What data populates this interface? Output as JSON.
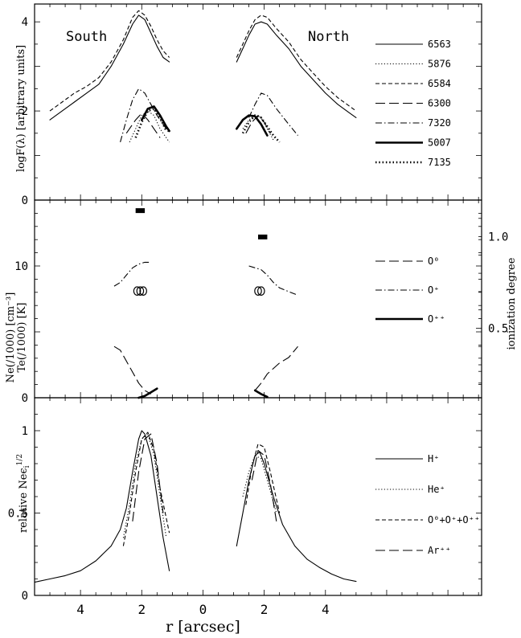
{
  "chart_data": [
    {
      "type": "line",
      "ylabel": "logF(λ) [arbitrary units]",
      "ylim": [
        0,
        4.4
      ],
      "yticks": [
        "0",
        "2",
        "4"
      ],
      "annotations": [
        "South",
        "North"
      ],
      "legend": [
        {
          "label": "6563",
          "style": "solid"
        },
        {
          "label": "5876",
          "style": "dotted"
        },
        {
          "label": "6584",
          "style": "short-dash"
        },
        {
          "label": "6300",
          "style": "long-dash"
        },
        {
          "label": "7320",
          "style": "dash-dot"
        },
        {
          "label": "5007",
          "style": "thick-solid"
        },
        {
          "label": "7135",
          "style": "thick-dotted"
        }
      ],
      "series": [
        {
          "name": "6563",
          "style": "solid",
          "x": [
            -5.0,
            -4.6,
            -4.2,
            -3.8,
            -3.4,
            -3.0,
            -2.6,
            -2.3,
            -2.1,
            -1.9,
            -1.7,
            -1.5,
            -1.3,
            -1.1
          ],
          "y": [
            1.8,
            2.0,
            2.2,
            2.4,
            2.6,
            3.0,
            3.5,
            3.95,
            4.15,
            4.05,
            3.75,
            3.45,
            3.2,
            3.1
          ]
        },
        {
          "name": "6563",
          "style": "solid",
          "x": [
            1.1,
            1.3,
            1.5,
            1.7,
            1.9,
            2.1,
            2.4,
            2.8,
            3.2,
            3.6,
            4.0,
            4.4,
            4.8,
            5.0
          ],
          "y": [
            3.1,
            3.4,
            3.7,
            3.95,
            4.0,
            3.95,
            3.7,
            3.4,
            3.0,
            2.7,
            2.4,
            2.15,
            1.95,
            1.85
          ]
        },
        {
          "name": "6584",
          "style": "short-dash",
          "x": [
            -5.0,
            -4.6,
            -4.2,
            -3.8,
            -3.4,
            -3.0,
            -2.6,
            -2.3,
            -2.1,
            -1.9,
            -1.7,
            -1.5,
            -1.3,
            -1.1
          ],
          "y": [
            2.0,
            2.2,
            2.4,
            2.55,
            2.75,
            3.1,
            3.6,
            4.1,
            4.25,
            4.15,
            3.9,
            3.6,
            3.35,
            3.2
          ]
        },
        {
          "name": "6584",
          "style": "short-dash",
          "x": [
            1.1,
            1.3,
            1.5,
            1.7,
            1.9,
            2.1,
            2.4,
            2.8,
            3.2,
            3.6,
            4.0,
            4.4,
            4.8,
            5.0
          ],
          "y": [
            3.2,
            3.5,
            3.8,
            4.05,
            4.15,
            4.1,
            3.85,
            3.55,
            3.15,
            2.85,
            2.55,
            2.3,
            2.1,
            2.0
          ]
        },
        {
          "name": "5876",
          "style": "dotted",
          "x": [
            -2.4,
            -2.2,
            -2.0,
            -1.8,
            -1.6,
            -1.4,
            -1.1
          ],
          "y": [
            1.3,
            1.6,
            1.9,
            2.0,
            1.9,
            1.6,
            1.3
          ]
        },
        {
          "name": "5876",
          "style": "dotted",
          "x": [
            1.3,
            1.5,
            1.7,
            1.9,
            2.1,
            2.3
          ],
          "y": [
            1.6,
            1.8,
            1.9,
            1.85,
            1.6,
            1.35
          ]
        },
        {
          "name": "6300",
          "style": "long-dash",
          "x": [
            -2.5,
            -2.2,
            -2.0,
            -1.8,
            -1.6,
            -1.4
          ],
          "y": [
            1.5,
            1.8,
            1.95,
            1.8,
            1.6,
            1.4
          ]
        },
        {
          "name": "6300",
          "style": "long-dash",
          "x": [
            1.4,
            1.6,
            1.8,
            2.0,
            2.2
          ],
          "y": [
            1.5,
            1.75,
            1.9,
            1.75,
            1.5
          ]
        },
        {
          "name": "7320",
          "style": "dash-dot",
          "x": [
            -2.7,
            -2.5,
            -2.3,
            -2.1,
            -1.9,
            -1.7,
            -1.5,
            -1.3,
            -1.1
          ],
          "y": [
            1.3,
            1.8,
            2.25,
            2.5,
            2.4,
            2.15,
            1.9,
            1.7,
            1.5
          ]
        },
        {
          "name": "7320",
          "style": "dash-dot",
          "x": [
            1.5,
            1.7,
            1.9,
            2.1,
            2.4,
            2.8,
            3.1
          ],
          "y": [
            1.85,
            2.15,
            2.4,
            2.35,
            2.05,
            1.7,
            1.45
          ]
        },
        {
          "name": "5007",
          "style": "thick-solid",
          "x": [
            -2.0,
            -1.8,
            -1.6,
            -1.4,
            -1.2,
            -1.1
          ],
          "y": [
            1.8,
            2.05,
            2.1,
            1.9,
            1.65,
            1.55
          ]
        },
        {
          "name": "5007",
          "style": "thick-solid",
          "x": [
            1.1,
            1.3,
            1.5,
            1.7,
            1.9,
            2.1
          ],
          "y": [
            1.6,
            1.8,
            1.9,
            1.88,
            1.7,
            1.45
          ]
        },
        {
          "name": "7135",
          "style": "thick-dotted",
          "x": [
            -2.2,
            -2.0,
            -1.8,
            -1.6,
            -1.4,
            -1.2
          ],
          "y": [
            1.4,
            1.75,
            2.0,
            2.05,
            1.85,
            1.55
          ]
        },
        {
          "name": "7135",
          "style": "thick-dotted",
          "x": [
            1.3,
            1.5,
            1.7,
            1.9,
            2.1,
            2.3,
            2.5
          ],
          "y": [
            1.5,
            1.75,
            1.9,
            1.85,
            1.65,
            1.45,
            1.3
          ]
        }
      ]
    },
    {
      "type": "line",
      "ylabel": "Ne(/1000) [cm⁻³]",
      "ylabel2": "Te(/1000) [K]",
      "y2label": "ionization degree",
      "ylim": [
        0,
        15
      ],
      "yticks": [
        "0",
        "10"
      ],
      "y2lim": [
        0.12,
        1.2
      ],
      "y2ticks": [
        "0.5",
        "1.0"
      ],
      "legend": [
        {
          "label": "O⁰",
          "style": "long-dash"
        },
        {
          "label": "O⁺",
          "style": "dash-dot"
        },
        {
          "label": "O⁺⁺",
          "style": "thick-solid"
        }
      ],
      "series": [
        {
          "name": "O⁰",
          "style": "long-dash",
          "x": [
            -2.9,
            -2.7,
            -2.5,
            -2.3,
            -2.1,
            -1.9,
            -1.7
          ],
          "y2": [
            0.4,
            0.38,
            0.32,
            0.26,
            0.2,
            0.16,
            0.14
          ]
        },
        {
          "name": "O⁰",
          "style": "long-dash",
          "x": [
            1.7,
            1.9,
            2.1,
            2.3,
            2.5,
            2.8,
            3.1
          ],
          "y2": [
            0.16,
            0.2,
            0.25,
            0.28,
            0.31,
            0.34,
            0.4
          ]
        },
        {
          "name": "O⁺",
          "style": "dash-dot",
          "x": [
            -2.9,
            -2.7,
            -2.5,
            -2.3,
            -2.1,
            -1.9,
            -1.7
          ],
          "y2": [
            0.73,
            0.75,
            0.79,
            0.83,
            0.85,
            0.86,
            0.86
          ]
        },
        {
          "name": "O⁺",
          "style": "dash-dot",
          "x": [
            1.5,
            1.7,
            1.9,
            2.1,
            2.3,
            2.5,
            2.8,
            3.1
          ],
          "y2": [
            0.84,
            0.83,
            0.82,
            0.79,
            0.75,
            0.72,
            0.7,
            0.68
          ]
        },
        {
          "name": "O⁺⁺",
          "style": "thick-solid",
          "x": [
            -2.1,
            -1.9,
            -1.7,
            -1.5
          ],
          "y2": [
            0.12,
            0.13,
            0.15,
            0.17
          ]
        },
        {
          "name": "O⁺⁺",
          "style": "thick-solid",
          "x": [
            1.7,
            1.9,
            2.1
          ],
          "y2": [
            0.16,
            0.14,
            0.125
          ]
        }
      ],
      "markers": [
        {
          "kind": "circles",
          "x": [
            -2.15,
            -2.05,
            -1.95
          ],
          "y": [
            8.1,
            8.1,
            8.1
          ]
        },
        {
          "kind": "circles",
          "x": [
            1.8,
            1.9
          ],
          "y": [
            8.1,
            8.1
          ]
        },
        {
          "kind": "bar",
          "x": [
            -2.2,
            -1.9
          ],
          "y": 14.2
        },
        {
          "kind": "bar",
          "x": [
            1.8,
            2.1
          ],
          "y": 12.2
        }
      ]
    },
    {
      "type": "line",
      "xlabel": "r [arcsec]",
      "ylabel": "relative Neϵ",
      "ylabel_sub": "i",
      "ylabel_sup": "1/2",
      "xlim": [
        -5.5,
        9.1
      ],
      "xticks": [
        "4",
        "2",
        "0",
        "2",
        "4"
      ],
      "ylim": [
        0,
        1.2
      ],
      "yticks": [
        "0",
        "0.5",
        "1"
      ],
      "legend": [
        {
          "label": "H⁺",
          "style": "solid"
        },
        {
          "label": "He⁺",
          "style": "dotted"
        },
        {
          "label": "O⁰+O⁺+O⁺⁺",
          "style": "short-dash"
        },
        {
          "label": "Ar⁺⁺",
          "style": "long-dash"
        }
      ],
      "series": [
        {
          "name": "H⁺",
          "style": "solid",
          "x": [
            -5.5,
            -5.0,
            -4.5,
            -4.0,
            -3.5,
            -3.0,
            -2.7,
            -2.5,
            -2.3,
            -2.1,
            -2.0,
            -1.9,
            -1.7,
            -1.5,
            -1.3,
            -1.1
          ],
          "y": [
            0.08,
            0.1,
            0.12,
            0.15,
            0.21,
            0.3,
            0.4,
            0.53,
            0.75,
            0.95,
            1.0,
            0.98,
            0.85,
            0.6,
            0.35,
            0.15
          ]
        },
        {
          "name": "H⁺",
          "style": "solid",
          "x": [
            1.1,
            1.3,
            1.5,
            1.7,
            1.85,
            2.0,
            2.3,
            2.6,
            3.0,
            3.4,
            3.8,
            4.2,
            4.6,
            5.0
          ],
          "y": [
            0.3,
            0.5,
            0.7,
            0.85,
            0.87,
            0.8,
            0.6,
            0.43,
            0.3,
            0.22,
            0.17,
            0.13,
            0.1,
            0.085
          ]
        },
        {
          "name": "He⁺",
          "style": "dotted",
          "x": [
            -2.6,
            -2.4,
            -2.2,
            -2.0,
            -1.8,
            -1.6,
            -1.4,
            -1.2
          ],
          "y": [
            0.35,
            0.55,
            0.8,
            0.95,
            0.98,
            0.85,
            0.6,
            0.35
          ]
        },
        {
          "name": "He⁺",
          "style": "dotted",
          "x": [
            1.3,
            1.5,
            1.7,
            1.9,
            2.1,
            2.4
          ],
          "y": [
            0.6,
            0.75,
            0.85,
            0.83,
            0.7,
            0.5
          ]
        },
        {
          "name": "O⁰+O⁺+O⁺⁺",
          "style": "short-dash",
          "x": [
            -2.6,
            -2.4,
            -2.2,
            -2.0,
            -1.8,
            -1.6,
            -1.4,
            -1.1
          ],
          "y": [
            0.3,
            0.5,
            0.75,
            0.95,
            0.99,
            0.88,
            0.65,
            0.38
          ]
        },
        {
          "name": "O⁰+O⁺+O⁺⁺",
          "style": "short-dash",
          "x": [
            1.4,
            1.6,
            1.8,
            2.0,
            2.2,
            2.5
          ],
          "y": [
            0.55,
            0.78,
            0.92,
            0.9,
            0.75,
            0.5
          ]
        },
        {
          "name": "Ar⁺⁺",
          "style": "long-dash",
          "x": [
            -2.3,
            -2.1,
            -1.9,
            -1.7,
            -1.5,
            -1.3
          ],
          "y": [
            0.45,
            0.75,
            0.95,
            0.98,
            0.8,
            0.5
          ]
        },
        {
          "name": "Ar⁺⁺",
          "style": "long-dash",
          "x": [
            1.6,
            1.8,
            2.0,
            2.2,
            2.4
          ],
          "y": [
            0.7,
            0.88,
            0.85,
            0.68,
            0.45
          ]
        }
      ]
    }
  ]
}
